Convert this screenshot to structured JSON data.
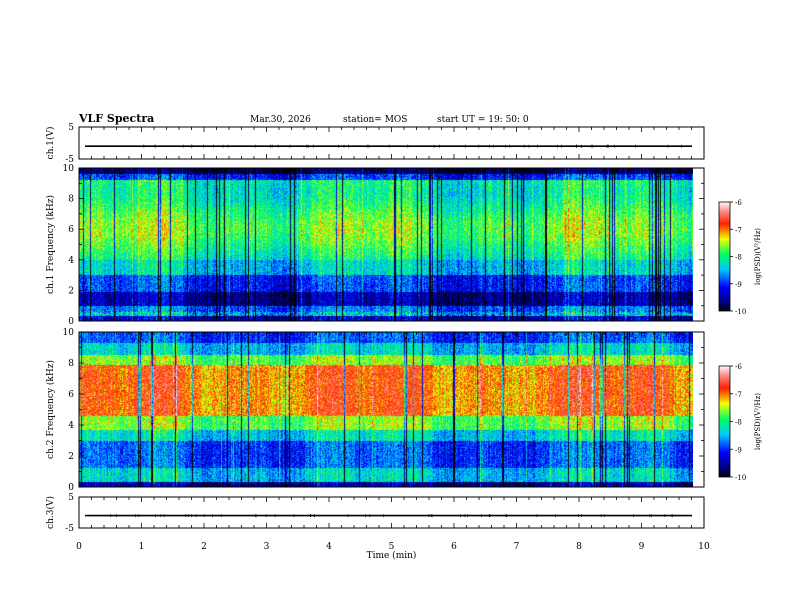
{
  "header": {
    "title": "VLF Spectra",
    "date": "Mar.30, 2026",
    "station": "station= MOS",
    "start": "start  UT =   19: 50: 0"
  },
  "chart_data": [
    {
      "type": "line",
      "name": "ch1-voltage",
      "ylabel": "ch.1(V)",
      "xlim": [
        0,
        10
      ],
      "ylim": [
        -5,
        5
      ],
      "yticks": [
        "5",
        "-5"
      ],
      "level": -1
    },
    {
      "type": "heatmap",
      "name": "ch1-spectrogram",
      "ylabel": "ch.1 Frequency (kHz)",
      "xlim": [
        0,
        10
      ],
      "ylim": [
        0,
        10
      ],
      "yticks": [
        "0",
        "2",
        "4",
        "6",
        "8",
        "10"
      ],
      "data_x_end": 9.82,
      "profile": "ch1",
      "colorbar": {
        "label": "log(PSD)(V²/Hz)",
        "ticks": [
          "-6",
          "-7",
          "-8",
          "-9",
          "-10"
        ],
        "range": [
          -10,
          -6
        ]
      }
    },
    {
      "type": "heatmap",
      "name": "ch2-spectrogram",
      "ylabel": "ch.2 Frequency (kHz)",
      "xlim": [
        0,
        10
      ],
      "ylim": [
        0,
        10
      ],
      "yticks": [
        "0",
        "2",
        "4",
        "6",
        "8",
        "10"
      ],
      "data_x_end": 9.82,
      "profile": "ch2",
      "colorbar": {
        "label": "log(PSD)(V²/Hz)",
        "ticks": [
          "-6",
          "-7",
          "-8",
          "-9",
          "-10"
        ],
        "range": [
          -10,
          -6
        ]
      }
    },
    {
      "type": "line",
      "name": "ch3-voltage",
      "ylabel": "ch.3(V)",
      "xlim": [
        0,
        10
      ],
      "ylim": [
        -5,
        5
      ],
      "yticks": [
        "5",
        "-5"
      ],
      "xlabel": "Time (min)",
      "xticks": [
        "0",
        "1",
        "2",
        "3",
        "4",
        "5",
        "6",
        "7",
        "8",
        "9",
        "10"
      ],
      "level": -1
    }
  ]
}
